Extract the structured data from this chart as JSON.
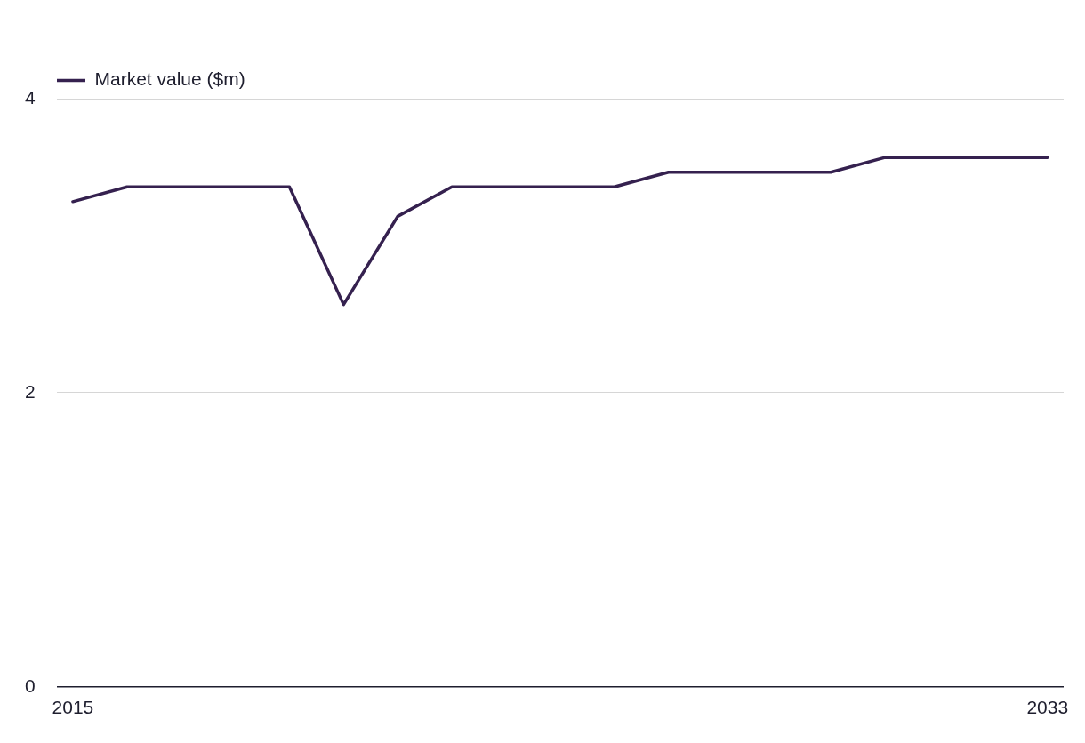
{
  "chart_data": {
    "type": "line",
    "x": [
      2015,
      2016,
      2017,
      2018,
      2019,
      2020,
      2021,
      2022,
      2023,
      2024,
      2025,
      2026,
      2027,
      2028,
      2029,
      2030,
      2031,
      2032,
      2033
    ],
    "series": [
      {
        "name": "Market value ($m)",
        "color": "#35214f",
        "values": [
          3.3,
          3.4,
          3.4,
          3.4,
          3.4,
          2.6,
          3.2,
          3.4,
          3.4,
          3.4,
          3.4,
          3.5,
          3.5,
          3.5,
          3.5,
          3.6,
          3.6,
          3.6,
          3.6
        ]
      }
    ],
    "xlim": [
      2014.7,
      2033.3
    ],
    "xticks": [
      2015,
      2033
    ],
    "ylim": [
      0,
      4
    ],
    "yticks": [
      0,
      2,
      4
    ],
    "grid": "y",
    "legend": "top left",
    "marker": "none",
    "line_style": "solid"
  }
}
